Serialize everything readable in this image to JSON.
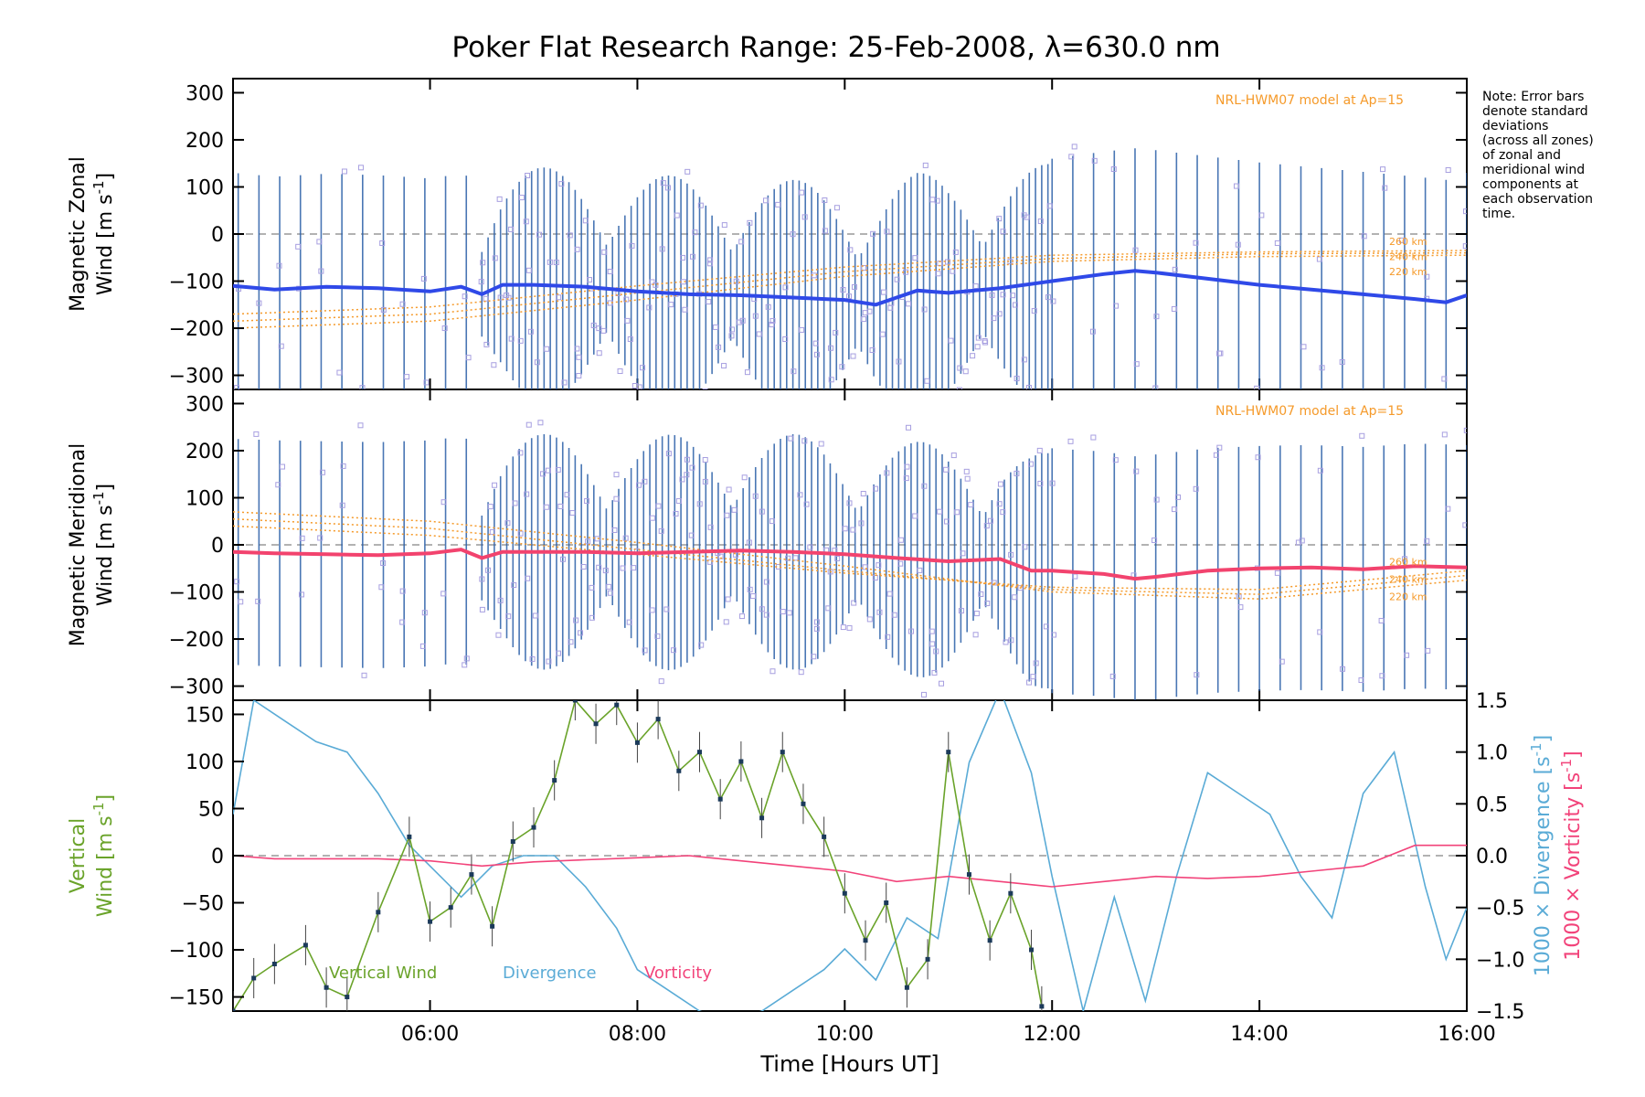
{
  "title": "Poker Flat Research Range: 25-Feb-2008, λ=630.0 nm",
  "note": [
    "Note: Error bars",
    "denote standard",
    "deviations",
    "(across all zones)",
    "of zonal and",
    "meridional wind",
    "components at",
    "each observation",
    "time."
  ],
  "model_label": "NRL-HWM07 model at Ap=15",
  "altitude_labels": [
    "260 km",
    "240 km",
    "220 km"
  ],
  "xlabel": "Time [Hours UT]",
  "x_ticks": [
    "06:00",
    "08:00",
    "10:00",
    "12:00",
    "14:00",
    "16:00"
  ],
  "colors": {
    "zonal": "#2f49e8",
    "zonal_light": "#4aa8dc",
    "meridional": "#f2436e",
    "vertical": "#6aa32a",
    "divergence": "#5aabd6",
    "vorticity": "#f2437a",
    "model": "#f59a2a",
    "samples": "#a79fe0",
    "errorbar": "#2a5fa8"
  },
  "chart_data": [
    {
      "type": "line",
      "panel": "zonal",
      "ylabel": [
        "Magnetic Zonal",
        "Wind [m s",
        "-1",
        "]"
      ],
      "ylim": [
        -330,
        330
      ],
      "y_ticks": [
        "300",
        "200",
        "100",
        "0",
        "−100",
        "−200",
        "−300"
      ],
      "xlim": [
        4.1,
        16.0
      ],
      "series": [
        {
          "x": [
            4.1,
            4.5,
            5.0,
            5.5,
            6.0,
            6.3,
            6.5,
            6.7,
            7.0,
            7.5,
            8.0,
            8.5,
            9.0,
            9.5,
            10.0,
            10.3,
            10.5,
            10.7,
            11.0,
            11.5,
            12.0,
            12.5,
            12.8,
            13.0,
            13.5,
            14.0,
            14.5,
            15.0,
            15.5,
            15.8,
            16.0
          ],
          "values": [
            -110,
            -118,
            -112,
            -115,
            -122,
            -112,
            -128,
            -108,
            -108,
            -112,
            -122,
            -128,
            -130,
            -135,
            -140,
            -150,
            -135,
            -120,
            -125,
            -115,
            -100,
            -85,
            -78,
            -82,
            -95,
            -108,
            -118,
            -128,
            -138,
            -145,
            -130
          ]
        }
      ],
      "model": {
        "x": [
          4.1,
          6.0,
          8.0,
          10.0,
          12.0,
          14.0,
          16.0
        ],
        "profiles": [
          [
            -170,
            -155,
            -110,
            -70,
            -45,
            -38,
            -35
          ],
          [
            -185,
            -170,
            -125,
            -80,
            -52,
            -42,
            -40
          ],
          [
            -200,
            -185,
            -140,
            -90,
            -58,
            -48,
            -45
          ]
        ]
      }
    },
    {
      "type": "line",
      "panel": "meridional",
      "ylabel": [
        "Magnetic Meridional",
        "Wind [m s",
        "-1",
        "]"
      ],
      "ylim": [
        -330,
        330
      ],
      "y_ticks": [
        "300",
        "200",
        "100",
        "0",
        "−100",
        "−200",
        "−300"
      ],
      "xlim": [
        4.1,
        16.0
      ],
      "series": [
        {
          "x": [
            4.1,
            4.5,
            5.0,
            5.5,
            6.0,
            6.3,
            6.5,
            6.7,
            7.0,
            7.5,
            8.0,
            8.5,
            9.0,
            9.5,
            10.0,
            10.5,
            11.0,
            11.5,
            11.8,
            12.0,
            12.5,
            12.8,
            13.0,
            13.5,
            14.0,
            14.5,
            15.0,
            15.5,
            16.0
          ],
          "values": [
            -15,
            -18,
            -20,
            -22,
            -18,
            -10,
            -28,
            -15,
            -15,
            -15,
            -18,
            -15,
            -12,
            -15,
            -20,
            -28,
            -35,
            -30,
            -55,
            -55,
            -62,
            -72,
            -68,
            -55,
            -50,
            -48,
            -52,
            -45,
            -48
          ]
        }
      ],
      "model": {
        "x": [
          4.1,
          6.0,
          8.0,
          10.0,
          12.0,
          14.0,
          16.0
        ],
        "profiles": [
          [
            40,
            20,
            -20,
            -60,
            -90,
            -95,
            -55
          ],
          [
            55,
            35,
            -10,
            -55,
            -95,
            -105,
            -65
          ],
          [
            70,
            50,
            5,
            -45,
            -100,
            -115,
            -75
          ]
        ]
      }
    },
    {
      "type": "line",
      "panel": "vertical",
      "ylabel_left": [
        "Vertical",
        "Wind [m s",
        "-1",
        "]"
      ],
      "ylabel_right_div": [
        "1000 × Divergence [s",
        "-1",
        "]"
      ],
      "ylabel_right_vort": [
        "1000 × Vorticity [s",
        "-1",
        "]"
      ],
      "ylim": [
        -165,
        165
      ],
      "y2lim": [
        -1.5,
        1.5
      ],
      "y_ticks": [
        "150",
        "100",
        "50",
        "0",
        "−50",
        "−100",
        "−150"
      ],
      "y2_ticks": [
        "1.5",
        "1.0",
        "0.5",
        "0.0",
        "−0.5",
        "−1.0",
        "−1.5"
      ],
      "legend": [
        "Vertical Wind",
        "Divergence",
        "Vorticity"
      ],
      "series": [
        {
          "name": "Vertical Wind",
          "x": [
            4.1,
            4.3,
            4.5,
            4.8,
            5.0,
            5.2,
            5.5,
            5.8,
            6.0,
            6.2,
            6.4,
            6.6,
            6.8,
            7.0,
            7.2,
            7.4,
            7.6,
            7.8,
            8.0,
            8.2,
            8.4,
            8.6,
            8.8,
            9.0,
            9.2,
            9.4,
            9.6,
            9.8,
            10.0,
            10.2,
            10.4,
            10.6,
            10.8,
            11.0,
            11.2,
            11.4,
            11.6,
            11.8,
            11.9
          ],
          "values": [
            -165,
            -130,
            -115,
            -95,
            -140,
            -150,
            -60,
            20,
            -70,
            -55,
            -20,
            -75,
            15,
            30,
            80,
            165,
            140,
            160,
            120,
            145,
            90,
            110,
            60,
            100,
            40,
            110,
            55,
            20,
            -40,
            -90,
            -50,
            -140,
            -110,
            110,
            -20,
            -90,
            -40,
            -100,
            -160
          ]
        },
        {
          "name": "Divergence",
          "x": [
            4.1,
            4.3,
            4.6,
            4.9,
            5.2,
            5.5,
            5.8,
            6.0,
            6.3,
            6.6,
            6.9,
            7.2,
            7.5,
            7.8,
            8.0,
            8.3,
            8.6,
            8.9,
            9.2,
            9.5,
            9.8,
            10.0,
            10.3,
            10.6,
            10.9,
            11.2,
            11.5,
            11.8,
            12.0,
            12.3,
            12.6,
            12.9,
            13.2,
            13.5,
            13.8,
            14.1,
            14.4,
            14.7,
            15.0,
            15.3,
            15.6,
            15.8,
            16.0
          ],
          "values": [
            0.4,
            1.5,
            1.3,
            1.1,
            1.0,
            0.6,
            0.1,
            -0.1,
            -0.4,
            -0.1,
            0.0,
            0.0,
            -0.3,
            -0.7,
            -1.1,
            -1.3,
            -1.5,
            -1.6,
            -1.5,
            -1.3,
            -1.1,
            -0.9,
            -1.2,
            -0.6,
            -0.8,
            0.9,
            1.6,
            0.8,
            -0.2,
            -1.5,
            -0.4,
            -1.4,
            -0.2,
            0.8,
            0.6,
            0.4,
            -0.2,
            -0.6,
            0.6,
            1.0,
            -0.3,
            -1.0,
            -0.5
          ]
        },
        {
          "name": "Vorticity",
          "x": [
            4.1,
            4.5,
            5.0,
            5.5,
            6.0,
            6.5,
            7.0,
            7.5,
            8.0,
            8.5,
            9.0,
            9.5,
            10.0,
            10.5,
            11.0,
            11.5,
            12.0,
            12.5,
            13.0,
            13.5,
            14.0,
            14.5,
            15.0,
            15.5,
            16.0
          ],
          "values": [
            0.0,
            -0.03,
            -0.03,
            -0.03,
            -0.05,
            -0.1,
            -0.06,
            -0.04,
            -0.02,
            0.0,
            -0.05,
            -0.1,
            -0.15,
            -0.25,
            -0.2,
            -0.25,
            -0.3,
            -0.25,
            -0.2,
            -0.22,
            -0.2,
            -0.15,
            -0.1,
            0.1,
            0.1
          ]
        }
      ]
    }
  ]
}
